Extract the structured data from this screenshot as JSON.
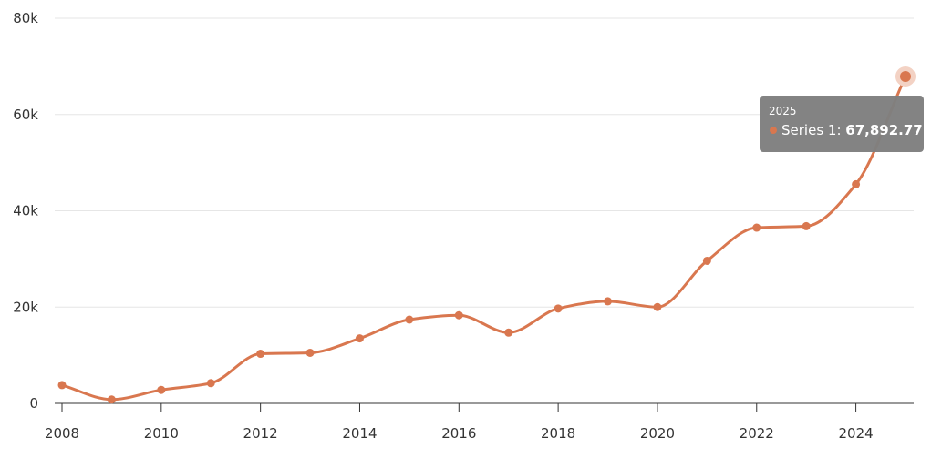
{
  "chart_data": {
    "type": "line",
    "title": "",
    "xlabel": "",
    "ylabel": "",
    "x": [
      2008,
      2009,
      2010,
      2011,
      2012,
      2013,
      2014,
      2015,
      2016,
      2017,
      2018,
      2019,
      2020,
      2021,
      2022,
      2023,
      2024,
      2025
    ],
    "series": [
      {
        "name": "Series 1",
        "values": [
          3800,
          800,
          2800,
          4200,
          10300,
          10500,
          13500,
          17400,
          18300,
          14700,
          19700,
          21200,
          20000,
          29600,
          36500,
          36800,
          45500,
          67892.77
        ]
      }
    ],
    "ylim": [
      0,
      80000
    ],
    "xlim": [
      2008,
      2025
    ],
    "yticks": [
      0,
      20000,
      40000,
      60000,
      80000
    ],
    "ytick_labels": [
      "0",
      "20k",
      "40k",
      "60k",
      "80k"
    ],
    "xticks": [
      2008,
      2010,
      2012,
      2014,
      2016,
      2018,
      2020,
      2022,
      2024
    ],
    "xtick_labels": [
      "2008",
      "2010",
      "2012",
      "2014",
      "2016",
      "2018",
      "2020",
      "2022",
      "2024"
    ],
    "grid": "horizontal",
    "legend": "none",
    "colors": {
      "line": "#d9774f",
      "highlight_halo": "#f3d2c4",
      "grid": "#e6e6e6",
      "axis": "#333333"
    },
    "tooltip": {
      "x_label": "2025",
      "series_label": "Series 1: ",
      "value_label": "67,892.77",
      "point_index": 17
    }
  }
}
